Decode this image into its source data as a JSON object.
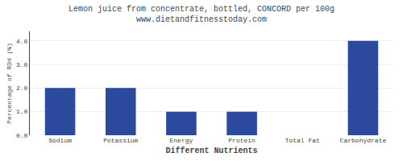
{
  "chart_data": {
    "type": "bar",
    "title": "Lemon juice from concentrate, bottled, CONCORD per 100g",
    "subtitle": "www.dietandfitnesstoday.com",
    "xlabel": "Different Nutrients",
    "ylabel": "Percentage of RDH (%)",
    "categories": [
      "Sodium",
      "Potassium",
      "Energy",
      "Protein",
      "Total Fat",
      "Carbohydrate"
    ],
    "values": [
      2.0,
      2.0,
      1.0,
      1.0,
      0.0,
      4.0
    ],
    "color": "#2b4a9e",
    "ylim": [
      0,
      4.4
    ],
    "yticks": [
      {
        "value": 0.0,
        "label": "0.0"
      },
      {
        "value": 1.0,
        "label": "1.0"
      },
      {
        "value": 2.0,
        "label": "2.0"
      },
      {
        "value": 3.0,
        "label": "3.0"
      },
      {
        "value": 4.0,
        "label": "4.0"
      }
    ],
    "grid": true
  }
}
